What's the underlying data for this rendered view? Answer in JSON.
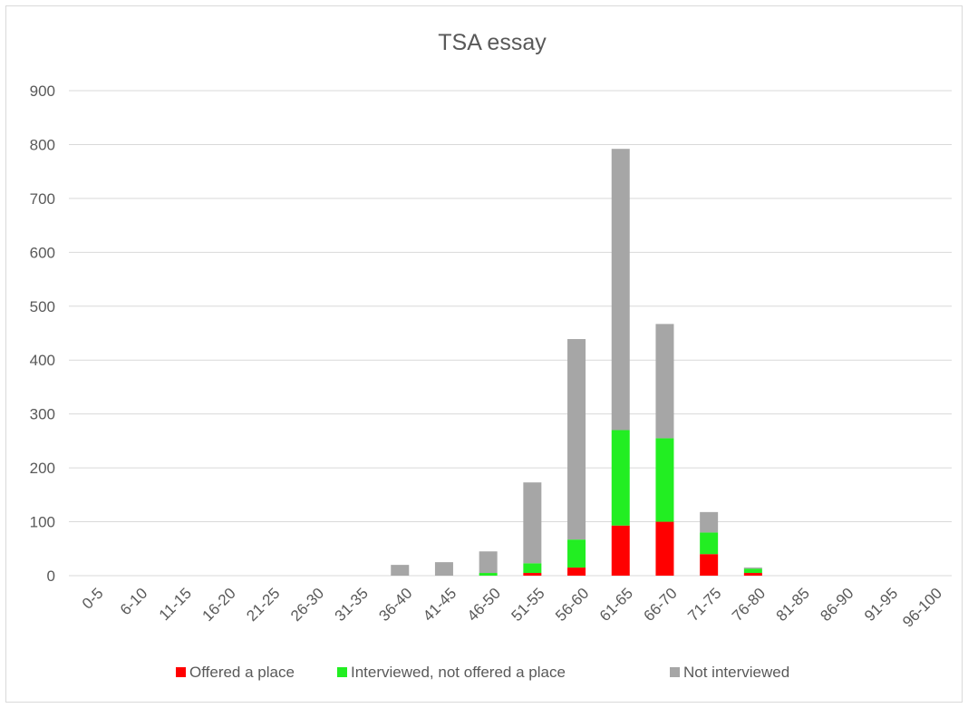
{
  "chart_data": {
    "type": "bar",
    "stacked": true,
    "title": "TSA essay",
    "xlabel": "",
    "ylabel": "",
    "ylim": [
      0,
      900
    ],
    "yticks": [
      0,
      100,
      200,
      300,
      400,
      500,
      600,
      700,
      800,
      900
    ],
    "grid": true,
    "legend_position": "bottom",
    "categories": [
      "0-5",
      "6-10",
      "11-15",
      "16-20",
      "21-25",
      "26-30",
      "31-35",
      "36-40",
      "41-45",
      "46-50",
      "51-55",
      "56-60",
      "61-65",
      "66-70",
      "71-75",
      "76-80",
      "81-85",
      "86-90",
      "91-95",
      "96-100"
    ],
    "series": [
      {
        "name": "Offered a place",
        "color": "#ff0000",
        "values": [
          0,
          0,
          0,
          0,
          0,
          0,
          0,
          0,
          0,
          0,
          5,
          15,
          93,
          100,
          40,
          5,
          0,
          0,
          0,
          0
        ]
      },
      {
        "name": "Interviewed, not offered a place",
        "color": "#22ee22",
        "values": [
          0,
          0,
          0,
          0,
          0,
          0,
          0,
          0,
          0,
          5,
          18,
          52,
          177,
          155,
          40,
          8,
          0,
          0,
          0,
          0
        ]
      },
      {
        "name": "Not interviewed",
        "color": "#a6a6a6",
        "values": [
          0,
          0,
          0,
          0,
          0,
          0,
          0,
          20,
          25,
          40,
          150,
          372,
          522,
          212,
          38,
          2,
          0,
          0,
          0,
          0
        ]
      }
    ]
  }
}
